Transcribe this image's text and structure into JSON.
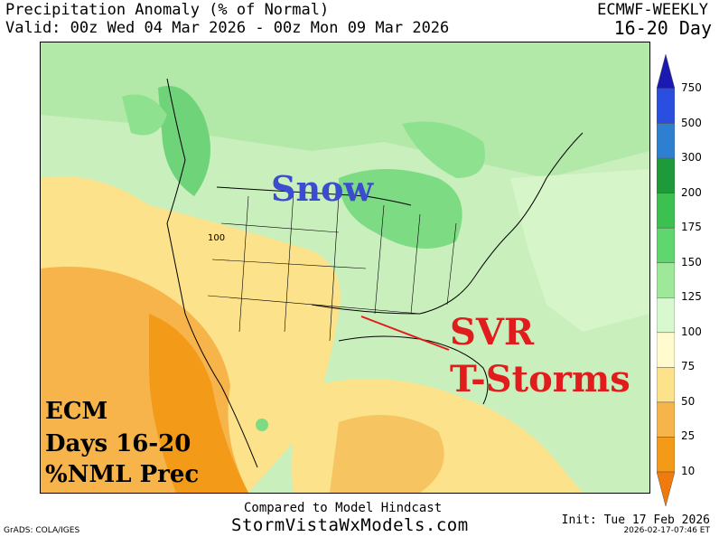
{
  "header": {
    "title": "Precipitation Anomaly (% of Normal)",
    "valid": "Valid: 00z Wed 04 Mar 2026 - 00z Mon 09 Mar 2026",
    "model": "ECMWF-WEEKLY",
    "period": "16-20 Day"
  },
  "map": {
    "contour_label": "100",
    "annotations": {
      "snow": "Snow",
      "svr_line1": "SVR",
      "svr_line2": "T-Storms",
      "ecm_line1": "ECM",
      "ecm_line2": "Days 16-20",
      "ecm_line3": "%NML Prec"
    }
  },
  "colorbar": {
    "levels": [
      "750",
      "500",
      "300",
      "200",
      "175",
      "150",
      "125",
      "100",
      "75",
      "50",
      "25",
      "10"
    ],
    "colors": [
      "#1a1ab0",
      "#2a4ee0",
      "#2f7fd0",
      "#1e9a3a",
      "#3cc050",
      "#5fd66e",
      "#9ee89a",
      "#d8f8d0",
      "#fffbcf",
      "#fce28a",
      "#f6b44a",
      "#f39a18",
      "#f07a0c"
    ]
  },
  "footer": {
    "compared": "Compared to Model Hindcast",
    "site": "StormVistaWxModels.com",
    "grads": "GrADS: COLA/IGES",
    "init": "Init: Tue 17 Feb 2026",
    "timestamp": "2026-02-17-07:46 ET"
  }
}
